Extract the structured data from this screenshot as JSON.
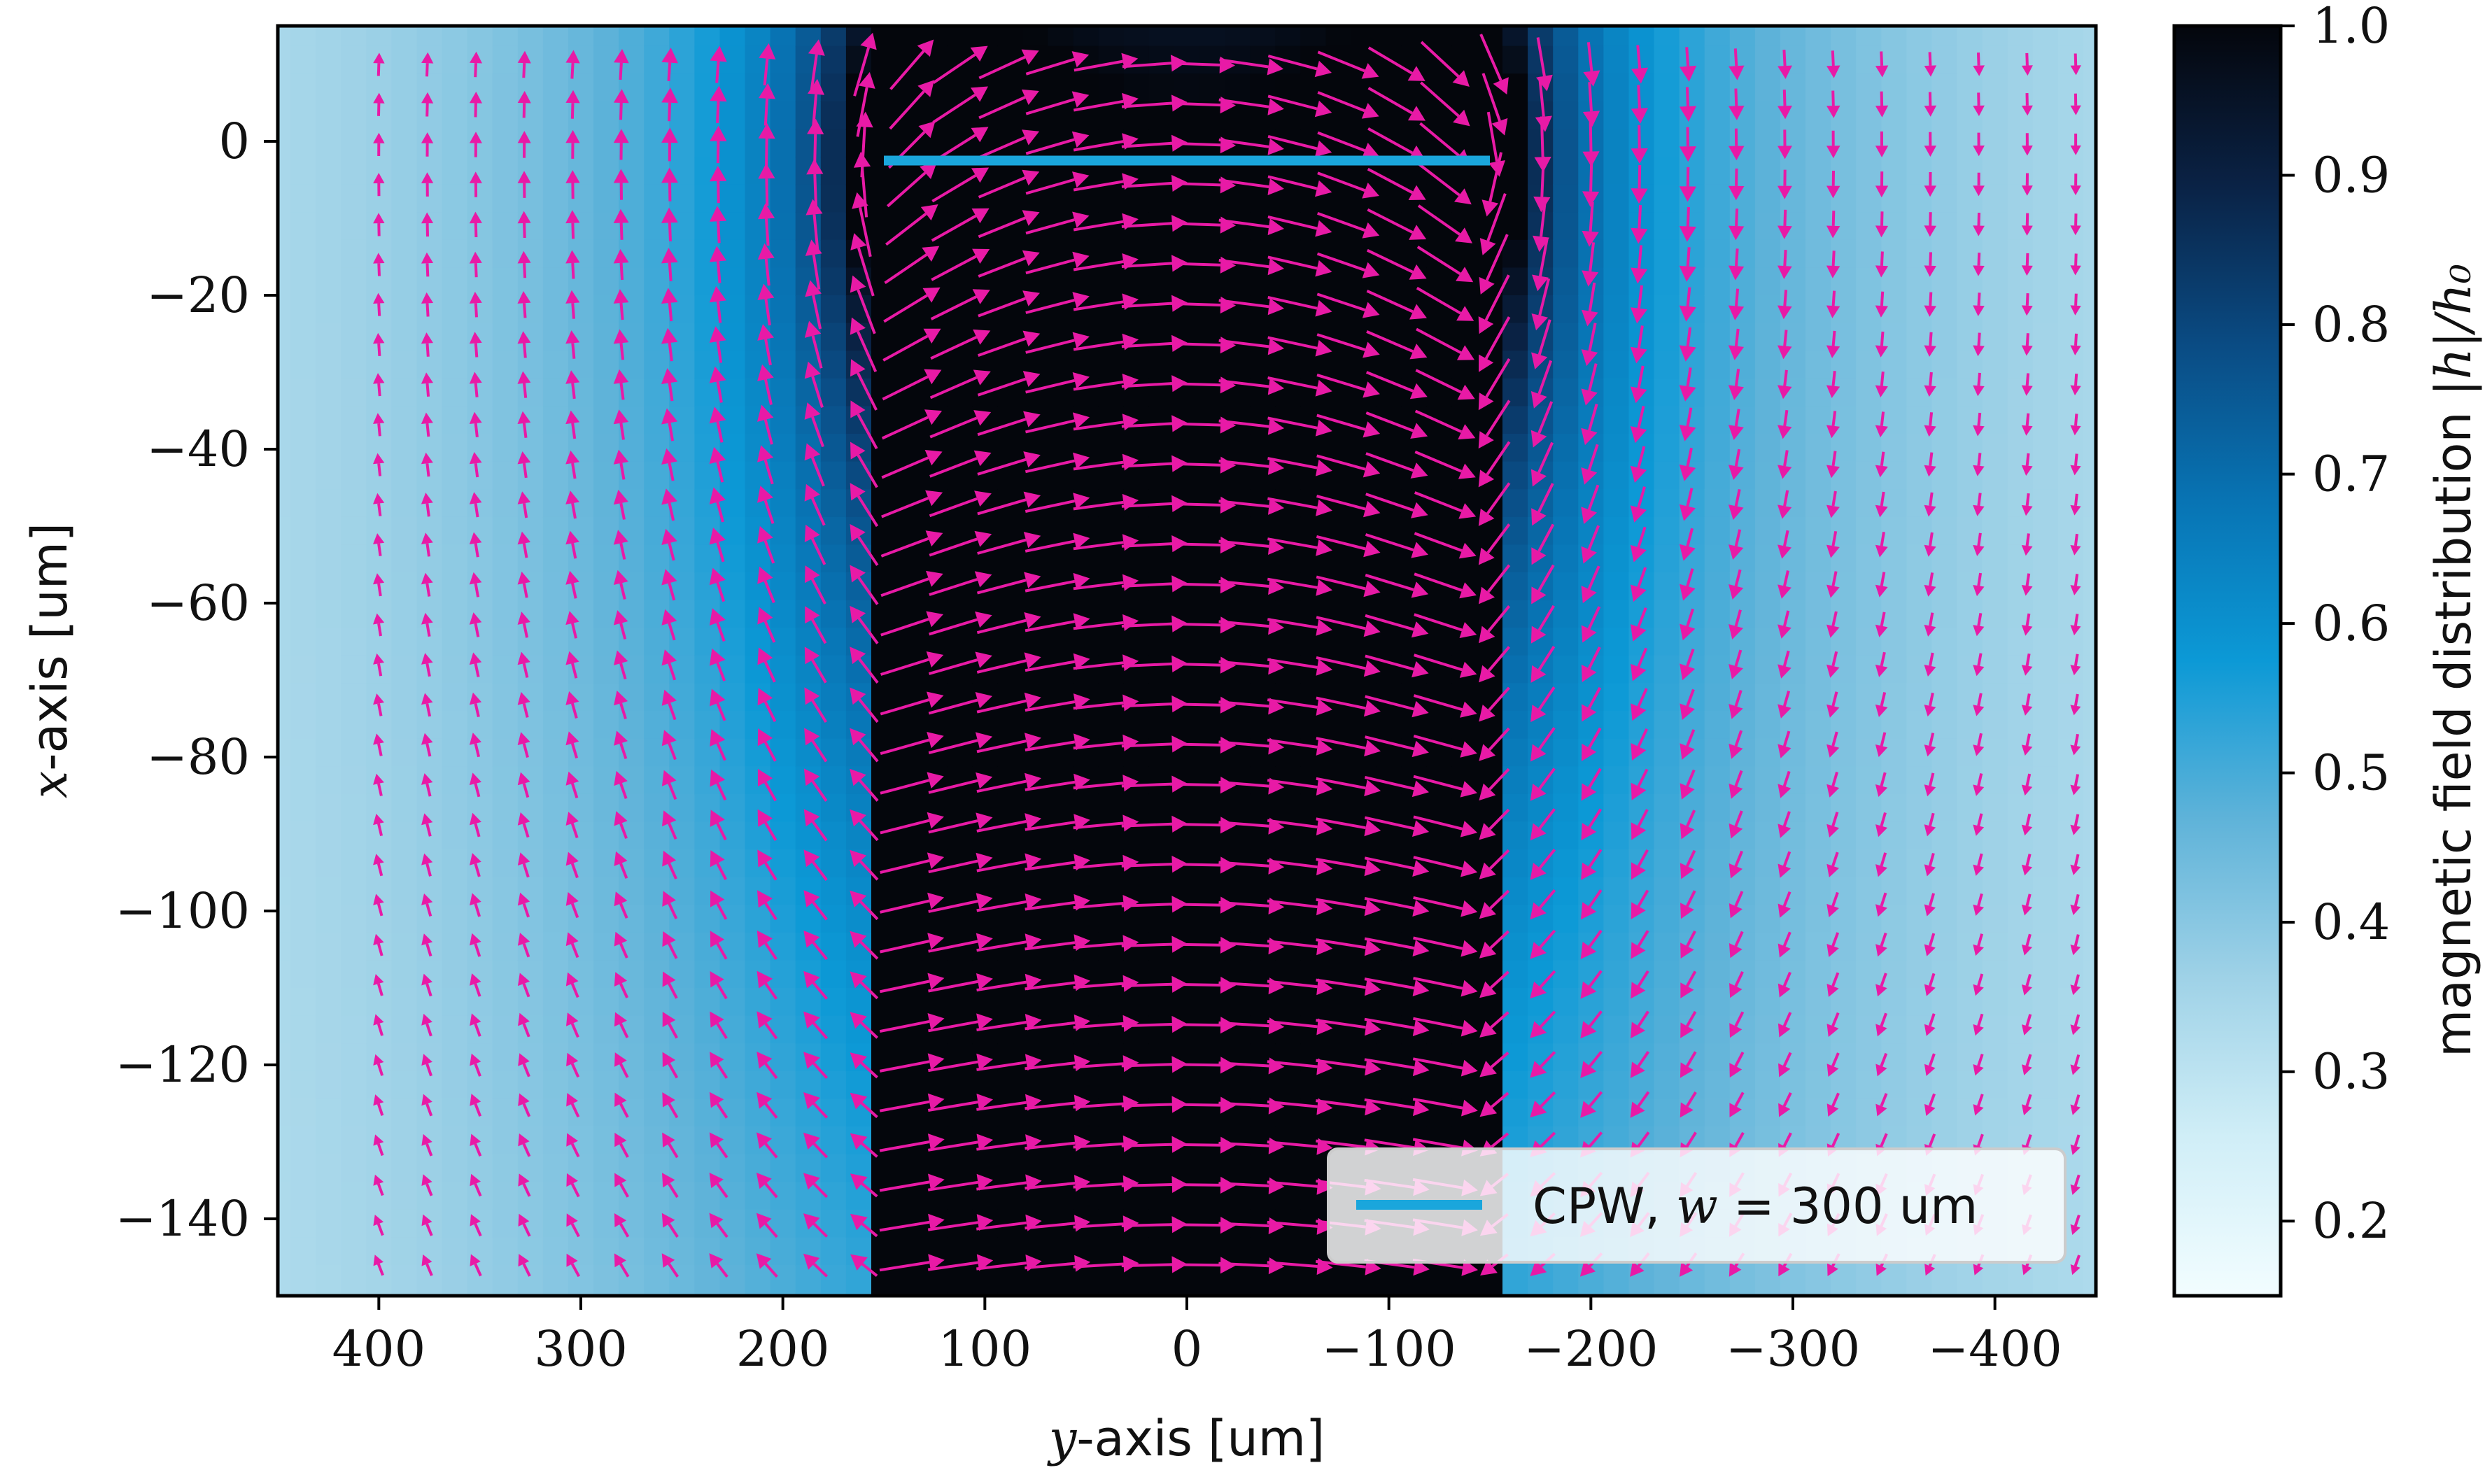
{
  "chart_data": {
    "type": "heatmap",
    "overlay": "quiver",
    "xlabel": {
      "var": "y",
      "rest": "-axis [um]"
    },
    "ylabel": {
      "var": "x",
      "rest": "-axis [um]"
    },
    "xlim": [
      450,
      -450
    ],
    "ylim": [
      -150,
      15
    ],
    "x_ticks": [
      400,
      300,
      200,
      100,
      0,
      -100,
      -200,
      -300,
      -400
    ],
    "x_tick_labels": [
      "400",
      "300",
      "200",
      "100",
      "0",
      "−100",
      "−200",
      "−300",
      "−400"
    ],
    "y_ticks": [
      0,
      -20,
      -40,
      -60,
      -80,
      -100,
      -120,
      -140
    ],
    "y_tick_labels": [
      "0",
      "−20",
      "−40",
      "−60",
      "−80",
      "−100",
      "−120",
      "−140"
    ],
    "colorbar": {
      "label_text": "magnetic field distribution ",
      "label_math": "|h|/h₀",
      "range": [
        0.15,
        1.0
      ],
      "ticks": [
        0.2,
        0.3,
        0.4,
        0.5,
        0.6,
        0.7,
        0.8,
        0.9,
        1.0
      ],
      "tick_labels": [
        "0.2",
        "0.3",
        "0.4",
        "0.5",
        "0.6",
        "0.7",
        "0.8",
        "0.9",
        "1.0"
      ],
      "colormap": [
        "#f2fdff",
        "#d0eef7",
        "#9fd2e7",
        "#5fb3d9",
        "#0c99d6",
        "#0874b4",
        "#0a4b83",
        "#0a2245",
        "#04060c"
      ]
    },
    "strip": {
      "y_from": 150,
      "y_to": -150,
      "x": -2.5,
      "color": "#1aa6dc"
    },
    "legend": {
      "position": "lower right",
      "label_text": "CPW, ",
      "label_math": "w",
      "label_rest": " = 300 um",
      "color": "#1aa6dc"
    },
    "arrow_color": "#e81aa6",
    "grid": false
  }
}
